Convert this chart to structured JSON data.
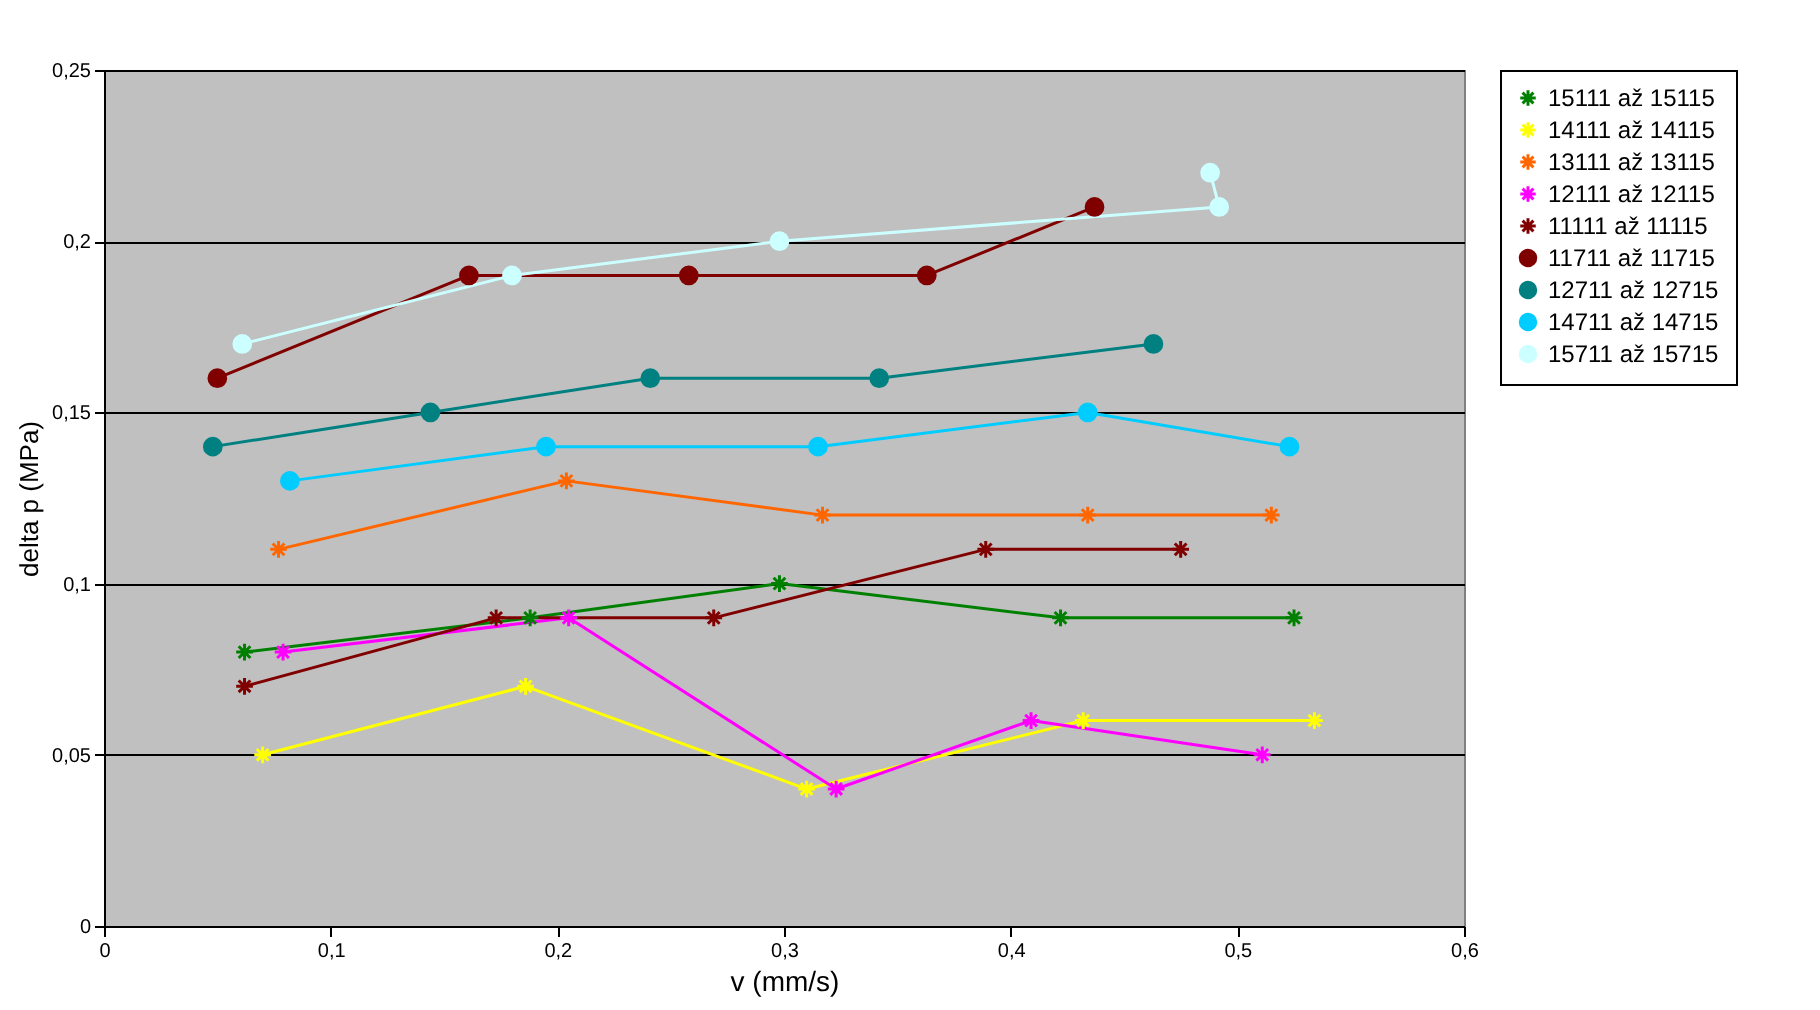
{
  "chart_data": {
    "type": "line",
    "xlabel": "v (mm/s)",
    "ylabel": "delta p (MPa)",
    "xlim": [
      0,
      0.6
    ],
    "ylim": [
      0,
      0.25
    ],
    "xticks": [
      0,
      {
        "value": 0.1,
        "label": "0,1"
      },
      {
        "value": 0.2,
        "label": "0,2"
      },
      {
        "value": 0.3,
        "label": "0,3"
      },
      {
        "value": 0.4,
        "label": "0,4"
      },
      {
        "value": 0.5,
        "label": "0,5"
      },
      {
        "value": 0.6,
        "label": "0,6"
      }
    ],
    "yticks": [
      0,
      {
        "value": 0.05,
        "label": "0,05"
      },
      {
        "value": 0.1,
        "label": "0,1"
      },
      {
        "value": 0.15,
        "label": "0,15"
      },
      {
        "value": 0.2,
        "label": "0,2"
      },
      {
        "value": 0.25,
        "label": "0,25"
      }
    ],
    "grid": "y",
    "legend": "top right",
    "series": [
      {
        "name": "15111 až 15115",
        "color": "#008000",
        "marker": "cross",
        "x": [
          0.062,
          0.188,
          0.298,
          0.422,
          0.525
        ],
        "values": [
          0.08,
          0.09,
          0.1,
          0.09,
          0.09
        ]
      },
      {
        "name": "14111 až 14115",
        "color": "#ffff00",
        "marker": "cross",
        "x": [
          0.07,
          0.186,
          0.31,
          0.432,
          0.534
        ],
        "values": [
          0.05,
          0.07,
          0.04,
          0.06,
          0.06
        ]
      },
      {
        "name": "13111 až 13115",
        "color": "#ff6600",
        "marker": "cross",
        "x": [
          0.077,
          0.204,
          0.317,
          0.434,
          0.515
        ],
        "values": [
          0.11,
          0.13,
          0.12,
          0.12,
          0.12
        ]
      },
      {
        "name": "12111 až 12115",
        "color": "#ff00ff",
        "marker": "cross",
        "x": [
          0.079,
          0.205,
          0.323,
          0.409,
          0.511
        ],
        "values": [
          0.08,
          0.09,
          0.04,
          0.06,
          0.05
        ]
      },
      {
        "name": "11111 až 11115",
        "color": "#800000",
        "marker": "cross",
        "x": [
          0.062,
          0.173,
          0.269,
          0.389,
          0.475
        ],
        "values": [
          0.07,
          0.09,
          0.09,
          0.11,
          0.11
        ]
      },
      {
        "name": "11711 až 11715",
        "color": "#800000",
        "marker": "circle",
        "x": [
          0.05,
          0.161,
          0.258,
          0.363,
          0.437
        ],
        "values": [
          0.16,
          0.19,
          0.19,
          0.19,
          0.21
        ]
      },
      {
        "name": "12711 až 12715",
        "color": "#008080",
        "marker": "circle",
        "x": [
          0.048,
          0.144,
          0.241,
          0.342,
          0.463
        ],
        "values": [
          0.14,
          0.15,
          0.16,
          0.16,
          0.17
        ]
      },
      {
        "name": "14711 až 14715",
        "color": "#00ccff",
        "marker": "circle",
        "x": [
          0.082,
          0.195,
          0.315,
          0.434,
          0.523
        ],
        "values": [
          0.13,
          0.14,
          0.14,
          0.15,
          0.14
        ]
      },
      {
        "name": "15711 až 15715",
        "color": "#ccffff",
        "marker": "circle",
        "x": [
          0.061,
          0.18,
          0.298,
          0.492,
          0.488
        ],
        "values": [
          0.17,
          0.19,
          0.2,
          0.21,
          0.22
        ]
      }
    ]
  }
}
